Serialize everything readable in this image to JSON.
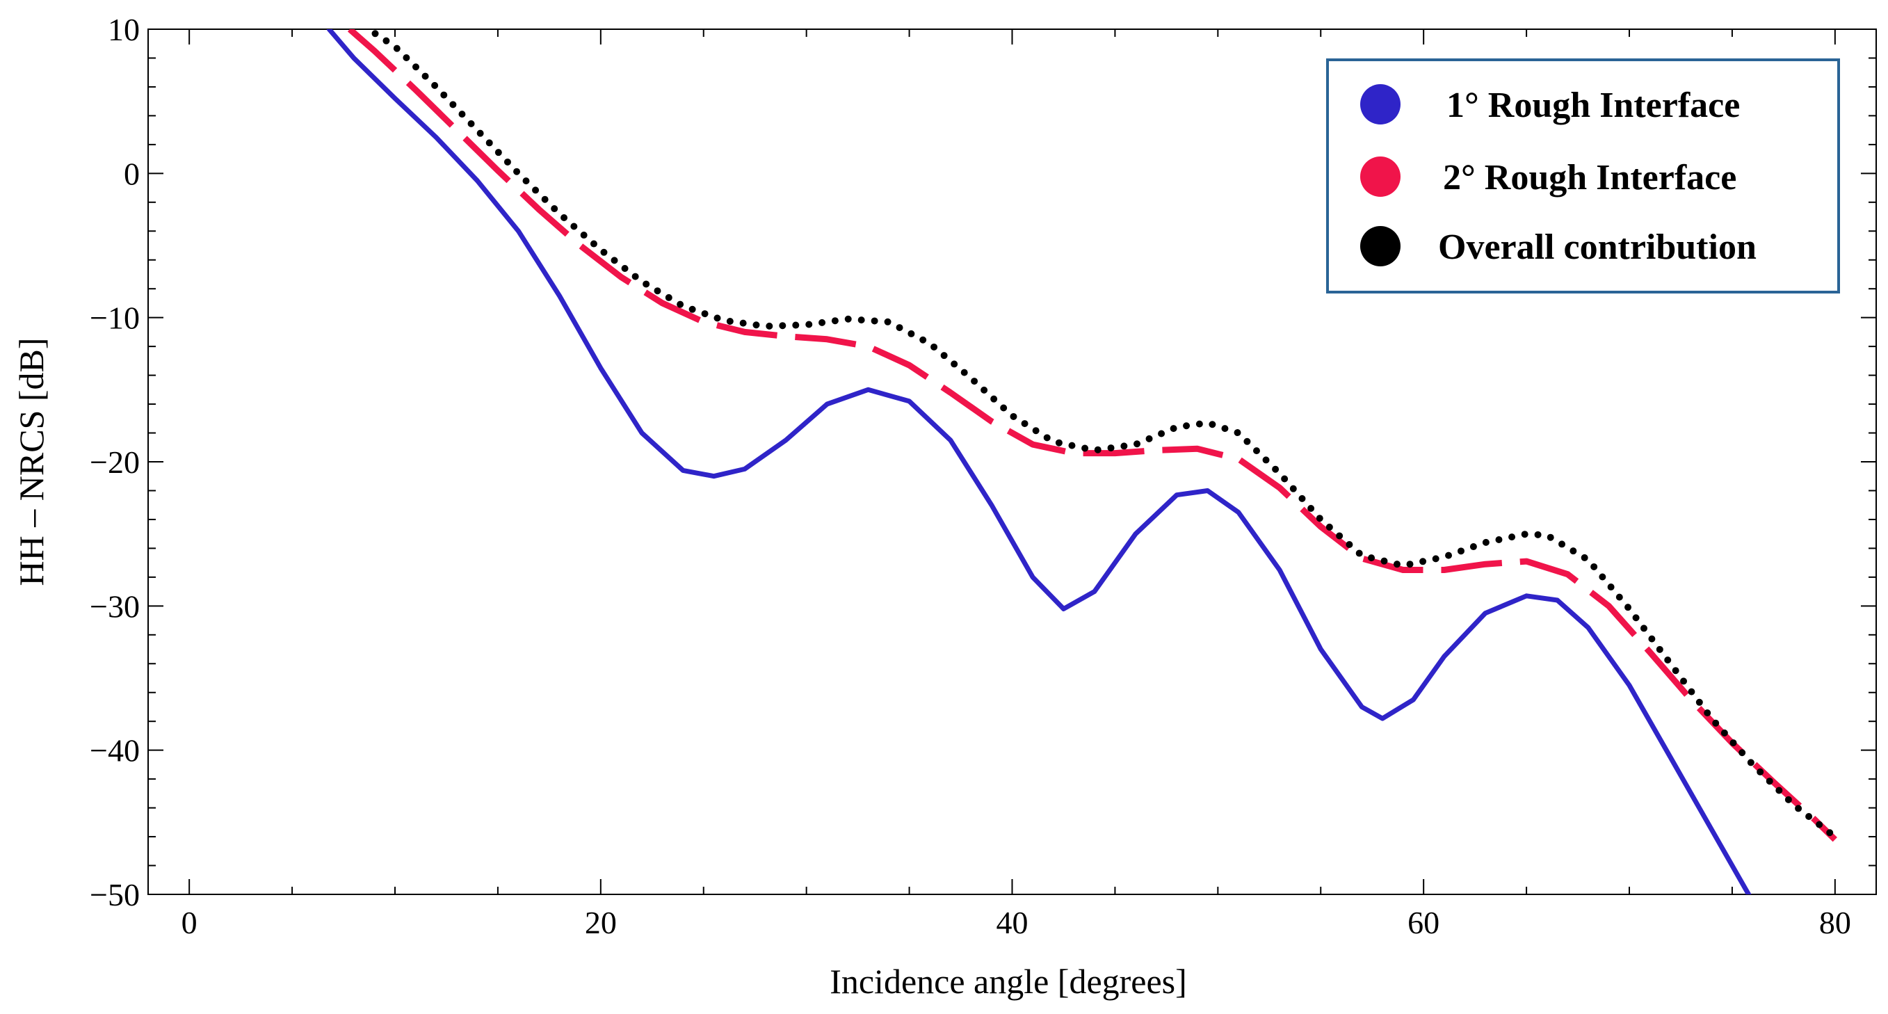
{
  "chart_data": {
    "type": "line",
    "title": "",
    "xlabel": "Incidence angle [degrees]",
    "ylabel": "HH – NRCS [dB]",
    "xlim": [
      -2,
      82
    ],
    "ylim": [
      -50,
      10
    ],
    "x_ticks": [
      0,
      20,
      40,
      60,
      80
    ],
    "x_tick_labels": [
      "0",
      "20",
      "40",
      "60",
      "80"
    ],
    "y_ticks": [
      10,
      0,
      -10,
      -20,
      -30,
      -40,
      -50
    ],
    "y_tick_labels": [
      "10",
      "0",
      "−10",
      "−20",
      "−30",
      "−40",
      "−50"
    ],
    "grid": false,
    "legend_position": "top-right",
    "series": [
      {
        "name": "1° Rough Interface",
        "color": "#2f24c8",
        "style": "solid",
        "points": [
          [
            6.8,
            10
          ],
          [
            8,
            8
          ],
          [
            10,
            5.2
          ],
          [
            12,
            2.5
          ],
          [
            14,
            -0.5
          ],
          [
            16,
            -4
          ],
          [
            18,
            -8.5
          ],
          [
            20,
            -13.5
          ],
          [
            22,
            -18
          ],
          [
            24,
            -20.6
          ],
          [
            25.5,
            -21
          ],
          [
            27,
            -20.5
          ],
          [
            29,
            -18.5
          ],
          [
            31,
            -16
          ],
          [
            33,
            -15
          ],
          [
            35,
            -15.8
          ],
          [
            37,
            -18.5
          ],
          [
            39,
            -23
          ],
          [
            41,
            -28
          ],
          [
            42.5,
            -30.2
          ],
          [
            44,
            -29
          ],
          [
            46,
            -25
          ],
          [
            48,
            -22.3
          ],
          [
            49.5,
            -22
          ],
          [
            51,
            -23.5
          ],
          [
            53,
            -27.5
          ],
          [
            55,
            -33
          ],
          [
            57,
            -37
          ],
          [
            58,
            -37.8
          ],
          [
            59.5,
            -36.5
          ],
          [
            61,
            -33.5
          ],
          [
            63,
            -30.5
          ],
          [
            65,
            -29.3
          ],
          [
            66.5,
            -29.6
          ],
          [
            68,
            -31.5
          ],
          [
            70,
            -35.5
          ],
          [
            72,
            -40.5
          ],
          [
            74,
            -45.5
          ],
          [
            76,
            -50.5
          ]
        ]
      },
      {
        "name": "2° Rough Interface",
        "color": "#f0144a",
        "style": "dashed",
        "points": [
          [
            7.8,
            10
          ],
          [
            9,
            8.5
          ],
          [
            11,
            5.8
          ],
          [
            13,
            3
          ],
          [
            15,
            0.2
          ],
          [
            17,
            -2.5
          ],
          [
            19,
            -5
          ],
          [
            21,
            -7.2
          ],
          [
            23,
            -9
          ],
          [
            25,
            -10.3
          ],
          [
            27,
            -11
          ],
          [
            29,
            -11.3
          ],
          [
            31,
            -11.5
          ],
          [
            33,
            -12
          ],
          [
            35,
            -13.3
          ],
          [
            37,
            -15.2
          ],
          [
            39,
            -17.2
          ],
          [
            41,
            -18.8
          ],
          [
            43,
            -19.4
          ],
          [
            45,
            -19.4
          ],
          [
            47,
            -19.2
          ],
          [
            49,
            -19.1
          ],
          [
            51,
            -19.8
          ],
          [
            53,
            -21.8
          ],
          [
            55,
            -24.5
          ],
          [
            57,
            -26.7
          ],
          [
            59,
            -27.5
          ],
          [
            61,
            -27.5
          ],
          [
            63,
            -27.1
          ],
          [
            65,
            -26.9
          ],
          [
            67,
            -27.8
          ],
          [
            69,
            -30
          ],
          [
            71,
            -33.2
          ],
          [
            73,
            -36.5
          ],
          [
            75,
            -39.5
          ],
          [
            77,
            -42.2
          ],
          [
            79,
            -44.8
          ],
          [
            80,
            -46.2
          ]
        ]
      },
      {
        "name": "Overall contribution",
        "color": "#000000",
        "style": "dotted",
        "points": [
          [
            8.5,
            10.2
          ],
          [
            10,
            8.8
          ],
          [
            12,
            6
          ],
          [
            14,
            3
          ],
          [
            16,
            0
          ],
          [
            18,
            -2.8
          ],
          [
            20,
            -5.3
          ],
          [
            22,
            -7.5
          ],
          [
            24,
            -9.2
          ],
          [
            26,
            -10.2
          ],
          [
            28,
            -10.6
          ],
          [
            30,
            -10.5
          ],
          [
            32,
            -10.1
          ],
          [
            34,
            -10.3
          ],
          [
            36,
            -11.8
          ],
          [
            38,
            -14.2
          ],
          [
            40,
            -16.8
          ],
          [
            42,
            -18.6
          ],
          [
            44,
            -19.2
          ],
          [
            46,
            -18.8
          ],
          [
            48,
            -17.6
          ],
          [
            49.5,
            -17.3
          ],
          [
            51,
            -18
          ],
          [
            53,
            -20.8
          ],
          [
            55,
            -24
          ],
          [
            57,
            -26.5
          ],
          [
            59,
            -27.2
          ],
          [
            61,
            -26.6
          ],
          [
            63,
            -25.6
          ],
          [
            65,
            -25
          ],
          [
            66,
            -25.1
          ],
          [
            68,
            -26.8
          ],
          [
            70,
            -30.2
          ],
          [
            72,
            -34
          ],
          [
            74,
            -37.8
          ],
          [
            76,
            -41
          ],
          [
            78,
            -43.8
          ],
          [
            80,
            -46
          ]
        ]
      }
    ]
  }
}
